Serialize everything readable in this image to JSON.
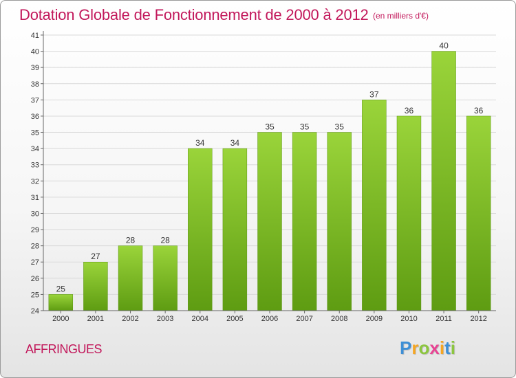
{
  "chart_data": {
    "type": "bar",
    "title": "Dotation Globale de Fonctionnement de 2000 à 2012",
    "subtitle": "(en milliers d'€)",
    "categories": [
      "2000",
      "2001",
      "2002",
      "2003",
      "2004",
      "2005",
      "2006",
      "2007",
      "2008",
      "2009",
      "2010",
      "2011",
      "2012"
    ],
    "values": [
      25,
      27,
      28,
      28,
      34,
      34,
      35,
      35,
      35,
      37,
      36,
      40,
      36
    ],
    "xlabel": "",
    "ylabel": "",
    "ylim": [
      24,
      41
    ],
    "yticks": [
      24,
      25,
      26,
      27,
      28,
      29,
      30,
      31,
      32,
      33,
      34,
      35,
      36,
      37,
      38,
      39,
      40,
      41
    ],
    "grid": "horizontal",
    "bar_color": "#7cc02a"
  },
  "commune": "AFFRINGUES",
  "logo": {
    "letters": [
      "P",
      "r",
      "o",
      "x",
      "i",
      "t",
      "i"
    ],
    "colors": [
      "#3d8fd6",
      "#f5a623",
      "#8cc63f",
      "#e84393",
      "#f5a623",
      "#3d8fd6",
      "#8cc63f"
    ]
  }
}
